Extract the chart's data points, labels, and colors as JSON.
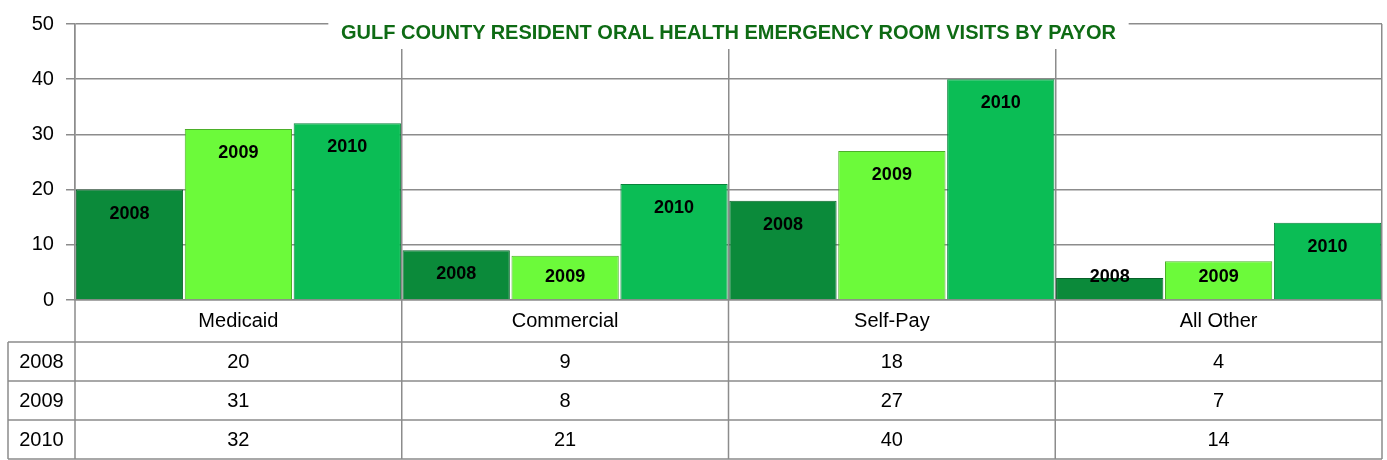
{
  "chart_data": {
    "type": "bar",
    "title": "GULF COUNTY RESIDENT ORAL HEALTH EMERGENCY ROOM VISITS BY PAYOR",
    "categories": [
      "Medicaid",
      "Commercial",
      "Self-Pay",
      "All Other"
    ],
    "series": [
      {
        "name": "2008",
        "color": "#0b8a3a",
        "values": [
          20,
          9,
          18,
          4
        ]
      },
      {
        "name": "2009",
        "color": "#6cfa3a",
        "values": [
          31,
          8,
          27,
          7
        ]
      },
      {
        "name": "2010",
        "color": "#0bbd55",
        "values": [
          32,
          21,
          40,
          14
        ]
      }
    ],
    "ylim": [
      0,
      50
    ],
    "yticks": [
      0,
      10,
      20,
      30,
      40,
      50
    ],
    "grid": true,
    "data_labels": true
  }
}
